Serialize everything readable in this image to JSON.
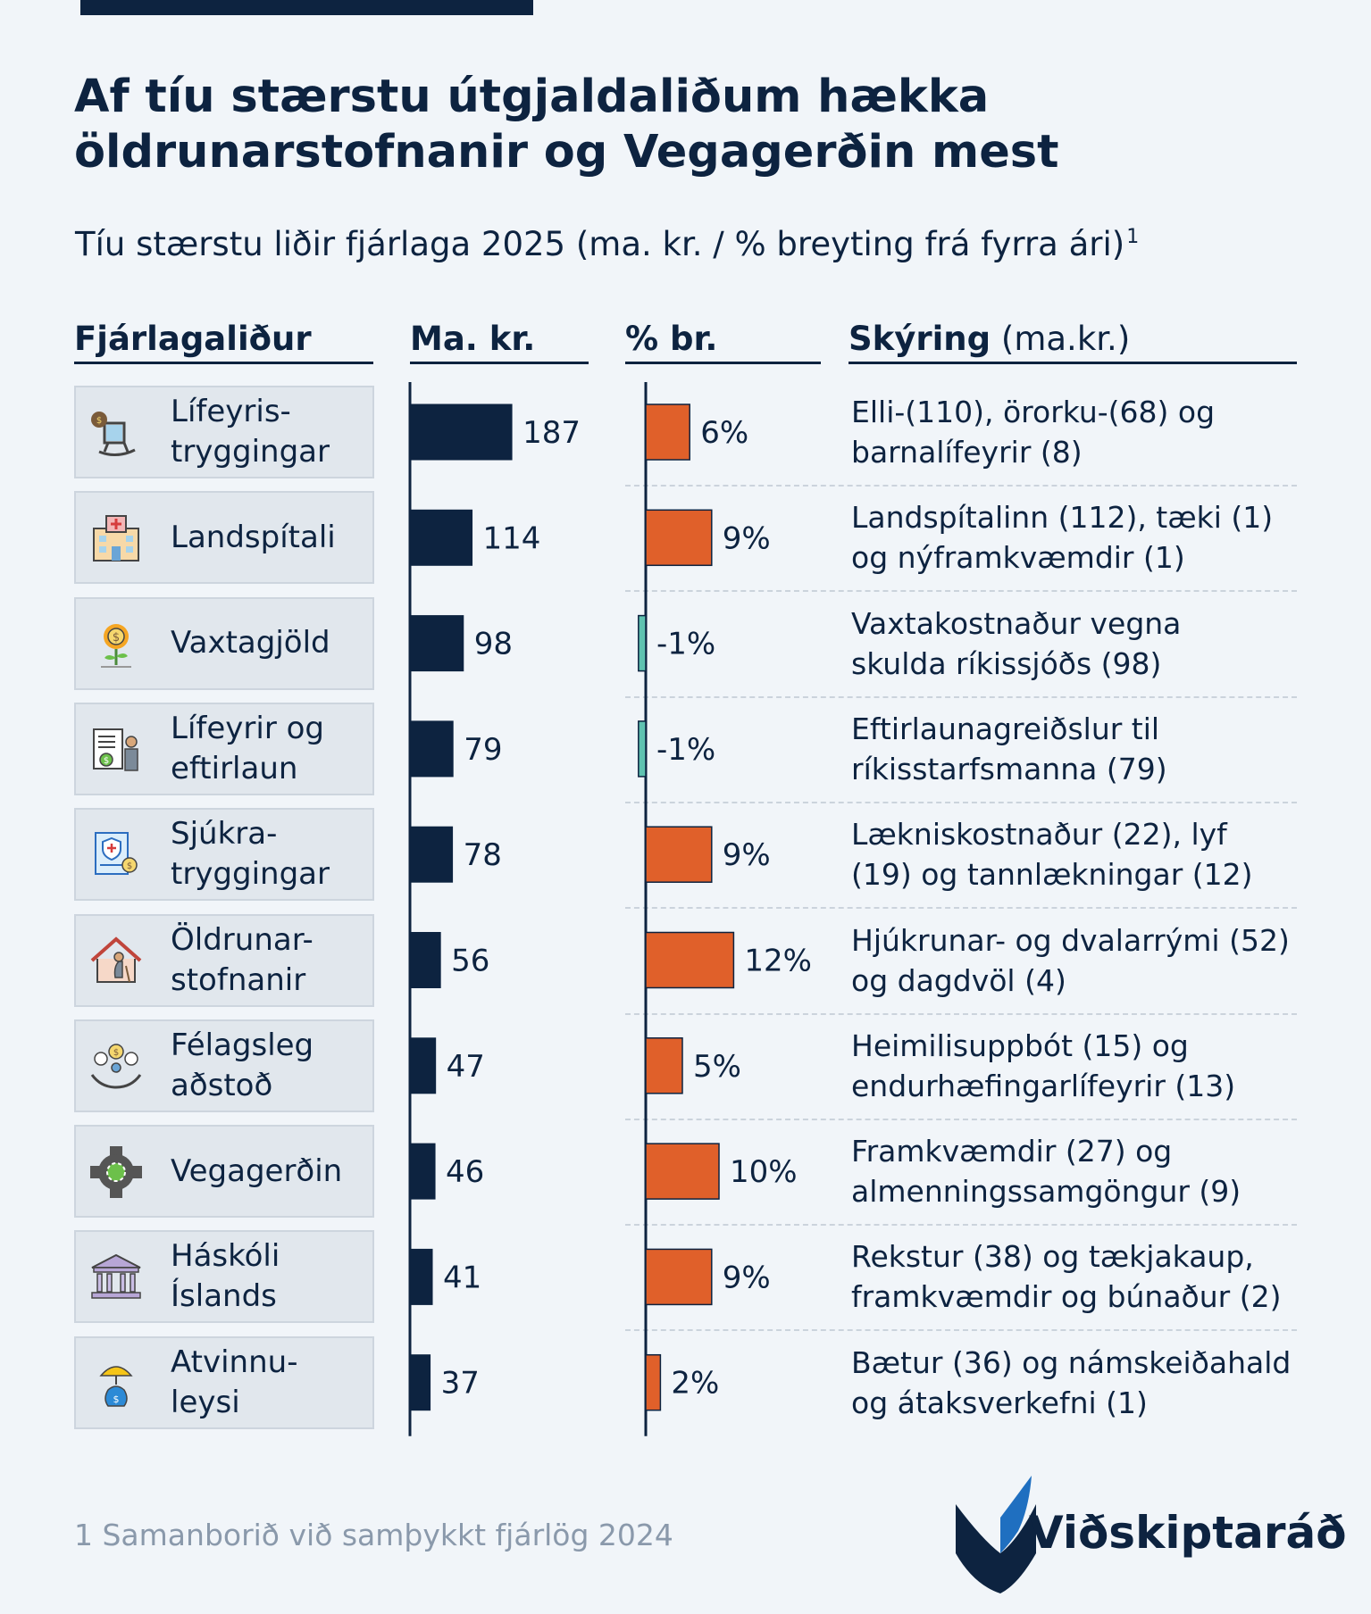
{
  "header": {
    "title_line1": "Af tíu stærstu útgjaldaliðum hækka",
    "title_line2": "öldrunarstofnanir og Vegagerðin mest",
    "subtitle": "Tíu stærstu liðir fjárlaga 2025 (ma. kr. / % breyting frá fyrra ári)",
    "subtitle_sup": "1"
  },
  "columns": {
    "item": "Fjárlagaliður",
    "value": "Ma. kr.",
    "pct": "% br.",
    "expl_bold": "Skýring",
    "expl_unit": " (ma.kr.)"
  },
  "rows": [
    {
      "label": "Lífeyris-\ntryggingar",
      "icon": "rocking-chair-money-icon",
      "explanation": "Elli-(110), örorku-(68) og\nbarnalífeyrir (8)"
    },
    {
      "label": "Landspítali",
      "icon": "hospital-icon",
      "explanation": "Landspítalinn (112), tæki (1)\nog nýframkvæmdir (1)"
    },
    {
      "label": "Vaxtagjöld",
      "icon": "money-plant-icon",
      "explanation": "Vaxtakostnaður vegna\nskulda ríkissjóðs (98)"
    },
    {
      "label": "Lífeyrir og\neftirlaun",
      "icon": "pension-document-icon",
      "explanation": "Eftirlaunagreiðslur til\nríkisstarfsmanna (79)"
    },
    {
      "label": "Sjúkra-\ntryggingar",
      "icon": "health-insurance-icon",
      "explanation": "Lækniskostnaður (22), lyf\n(19) og tannlækningar (12)"
    },
    {
      "label": "Öldrunar-\nstofnanir",
      "icon": "elderly-home-icon",
      "explanation": "Hjúkrunar- og dvalarrými (52)\nog dagdvöl (4)"
    },
    {
      "label": "Félagsleg\naðstoð",
      "icon": "social-support-hands-icon",
      "explanation": "Heimilisuppbót (15) og\nendurhæfingarlífeyrir (13)"
    },
    {
      "label": "Vegagerðin",
      "icon": "roundabout-icon",
      "explanation": "Framkvæmdir (27) og\nalmenningssamgöngur (9)"
    },
    {
      "label": "Háskóli\nÍslands",
      "icon": "university-icon",
      "explanation": "Rekstur (38) og tækjakaup,\nframkvæmdir og búnaður (2)"
    },
    {
      "label": "Atvinnu-\nleysi",
      "icon": "umbrella-money-bag-icon",
      "explanation": "Bætur (36) og námskeiðahald\nog átaksverkefni (1)"
    }
  ],
  "chart_data": {
    "type": "bar",
    "categories": [
      "Lífeyris-tryggingar",
      "Landspítali",
      "Vaxtagjöld",
      "Lífeyrir og eftirlaun",
      "Sjúkra-tryggingar",
      "Öldrunar-stofnanir",
      "Félagsleg aðstoð",
      "Vegagerðin",
      "Háskóli Íslands",
      "Atvinnu-leysi"
    ],
    "series": [
      {
        "name": "Ma. kr.",
        "values": [
          187,
          114,
          98,
          79,
          78,
          56,
          47,
          46,
          41,
          37
        ],
        "labels": [
          "187",
          "114",
          "98",
          "79",
          "78",
          "56",
          "47",
          "46",
          "41",
          "37"
        ],
        "color": "#0d2340"
      },
      {
        "name": "% br.",
        "values": [
          6,
          9,
          -1,
          -1,
          9,
          12,
          5,
          10,
          9,
          2
        ],
        "labels": [
          "6%",
          "9%",
          "-1%",
          "-1%",
          "9%",
          "12%",
          "5%",
          "10%",
          "9%",
          "2%"
        ],
        "color_positive": "#e0602a",
        "color_negative": "#5fc2b0"
      }
    ],
    "orientation": "horizontal"
  },
  "footnote": "1 Samanborið við samþykkt fjárlög 2024",
  "logo": {
    "text": "Viðskiptaráð",
    "mark": "wheat-leaf-logo-icon"
  }
}
